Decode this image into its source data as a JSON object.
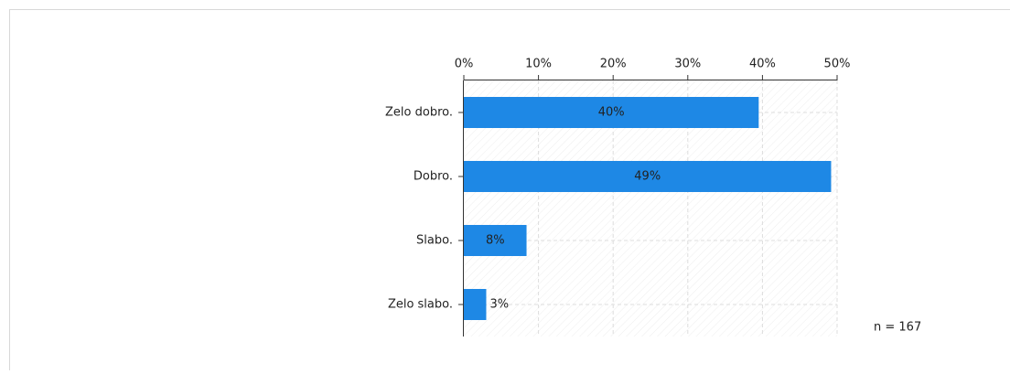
{
  "chart_data": {
    "type": "bar",
    "orientation": "horizontal",
    "categories": [
      "Zelo dobro.",
      "Dobro.",
      "Slabo.",
      "Zelo slabo."
    ],
    "values": [
      39.5,
      49.2,
      8.4,
      3.0
    ],
    "value_labels": [
      "40%",
      "49%",
      "8%",
      "3%"
    ],
    "color": "#1e88e5",
    "xlim": [
      0,
      50
    ],
    "xticks": [
      {
        "value": 0,
        "label": "0%"
      },
      {
        "value": 10,
        "label": "10%"
      },
      {
        "value": 20,
        "label": "20%"
      },
      {
        "value": 30,
        "label": "30%"
      },
      {
        "value": 40,
        "label": "40%"
      },
      {
        "value": 50,
        "label": "50%"
      }
    ],
    "grid": true,
    "note": "n = 167"
  }
}
